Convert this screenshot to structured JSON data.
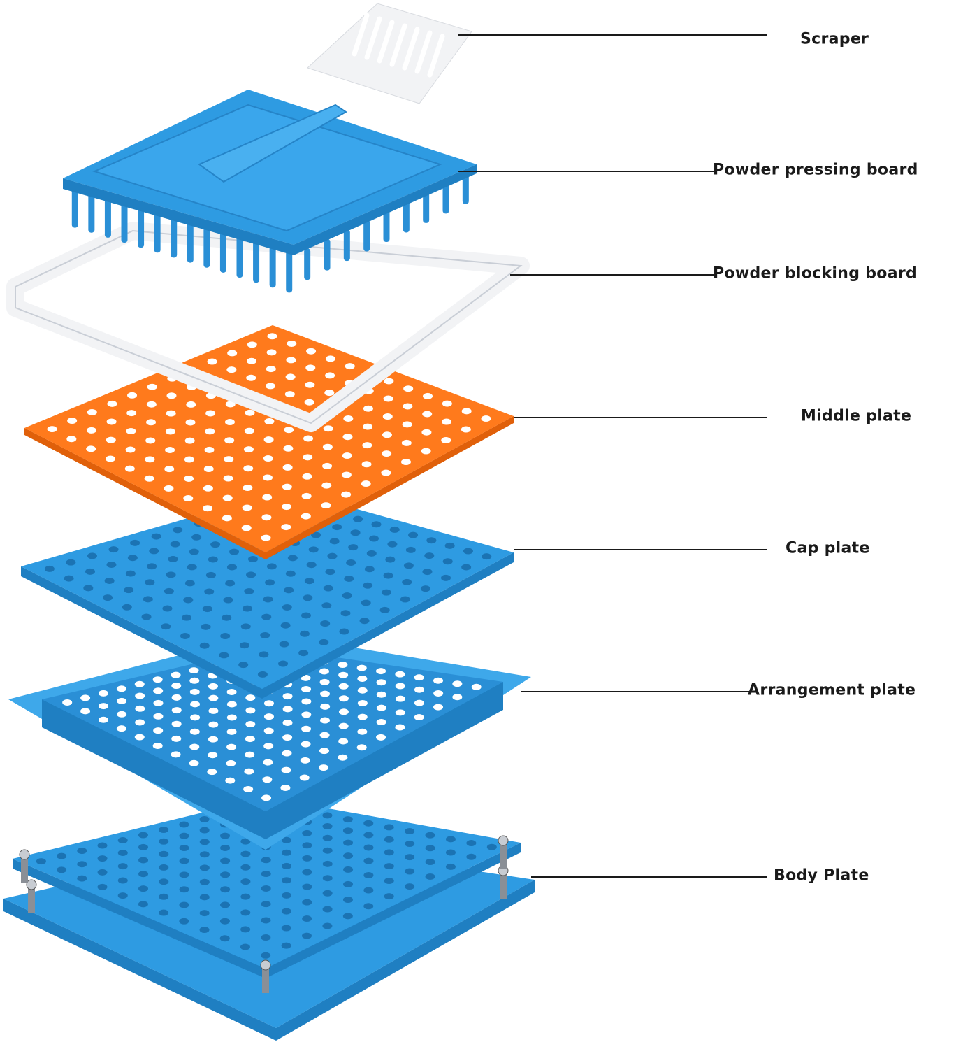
{
  "colors": {
    "blue": "#2e9be2",
    "blue_dark": "#1f7fc2",
    "orange": "#ff7a1c",
    "orange_dark": "#e0600a",
    "white_part": "#f2f3f5",
    "leader_line": "#1a1a1a"
  },
  "labels": {
    "scraper": "Scraper",
    "powder_pressing_board": "Powder pressing board",
    "powder_blocking_board": "Powder blocking board",
    "middle_plate": "Middle plate",
    "cap_plate": "Cap plate",
    "arrangement_plate": "Arrangement plate",
    "body_plate": "Body Plate"
  }
}
